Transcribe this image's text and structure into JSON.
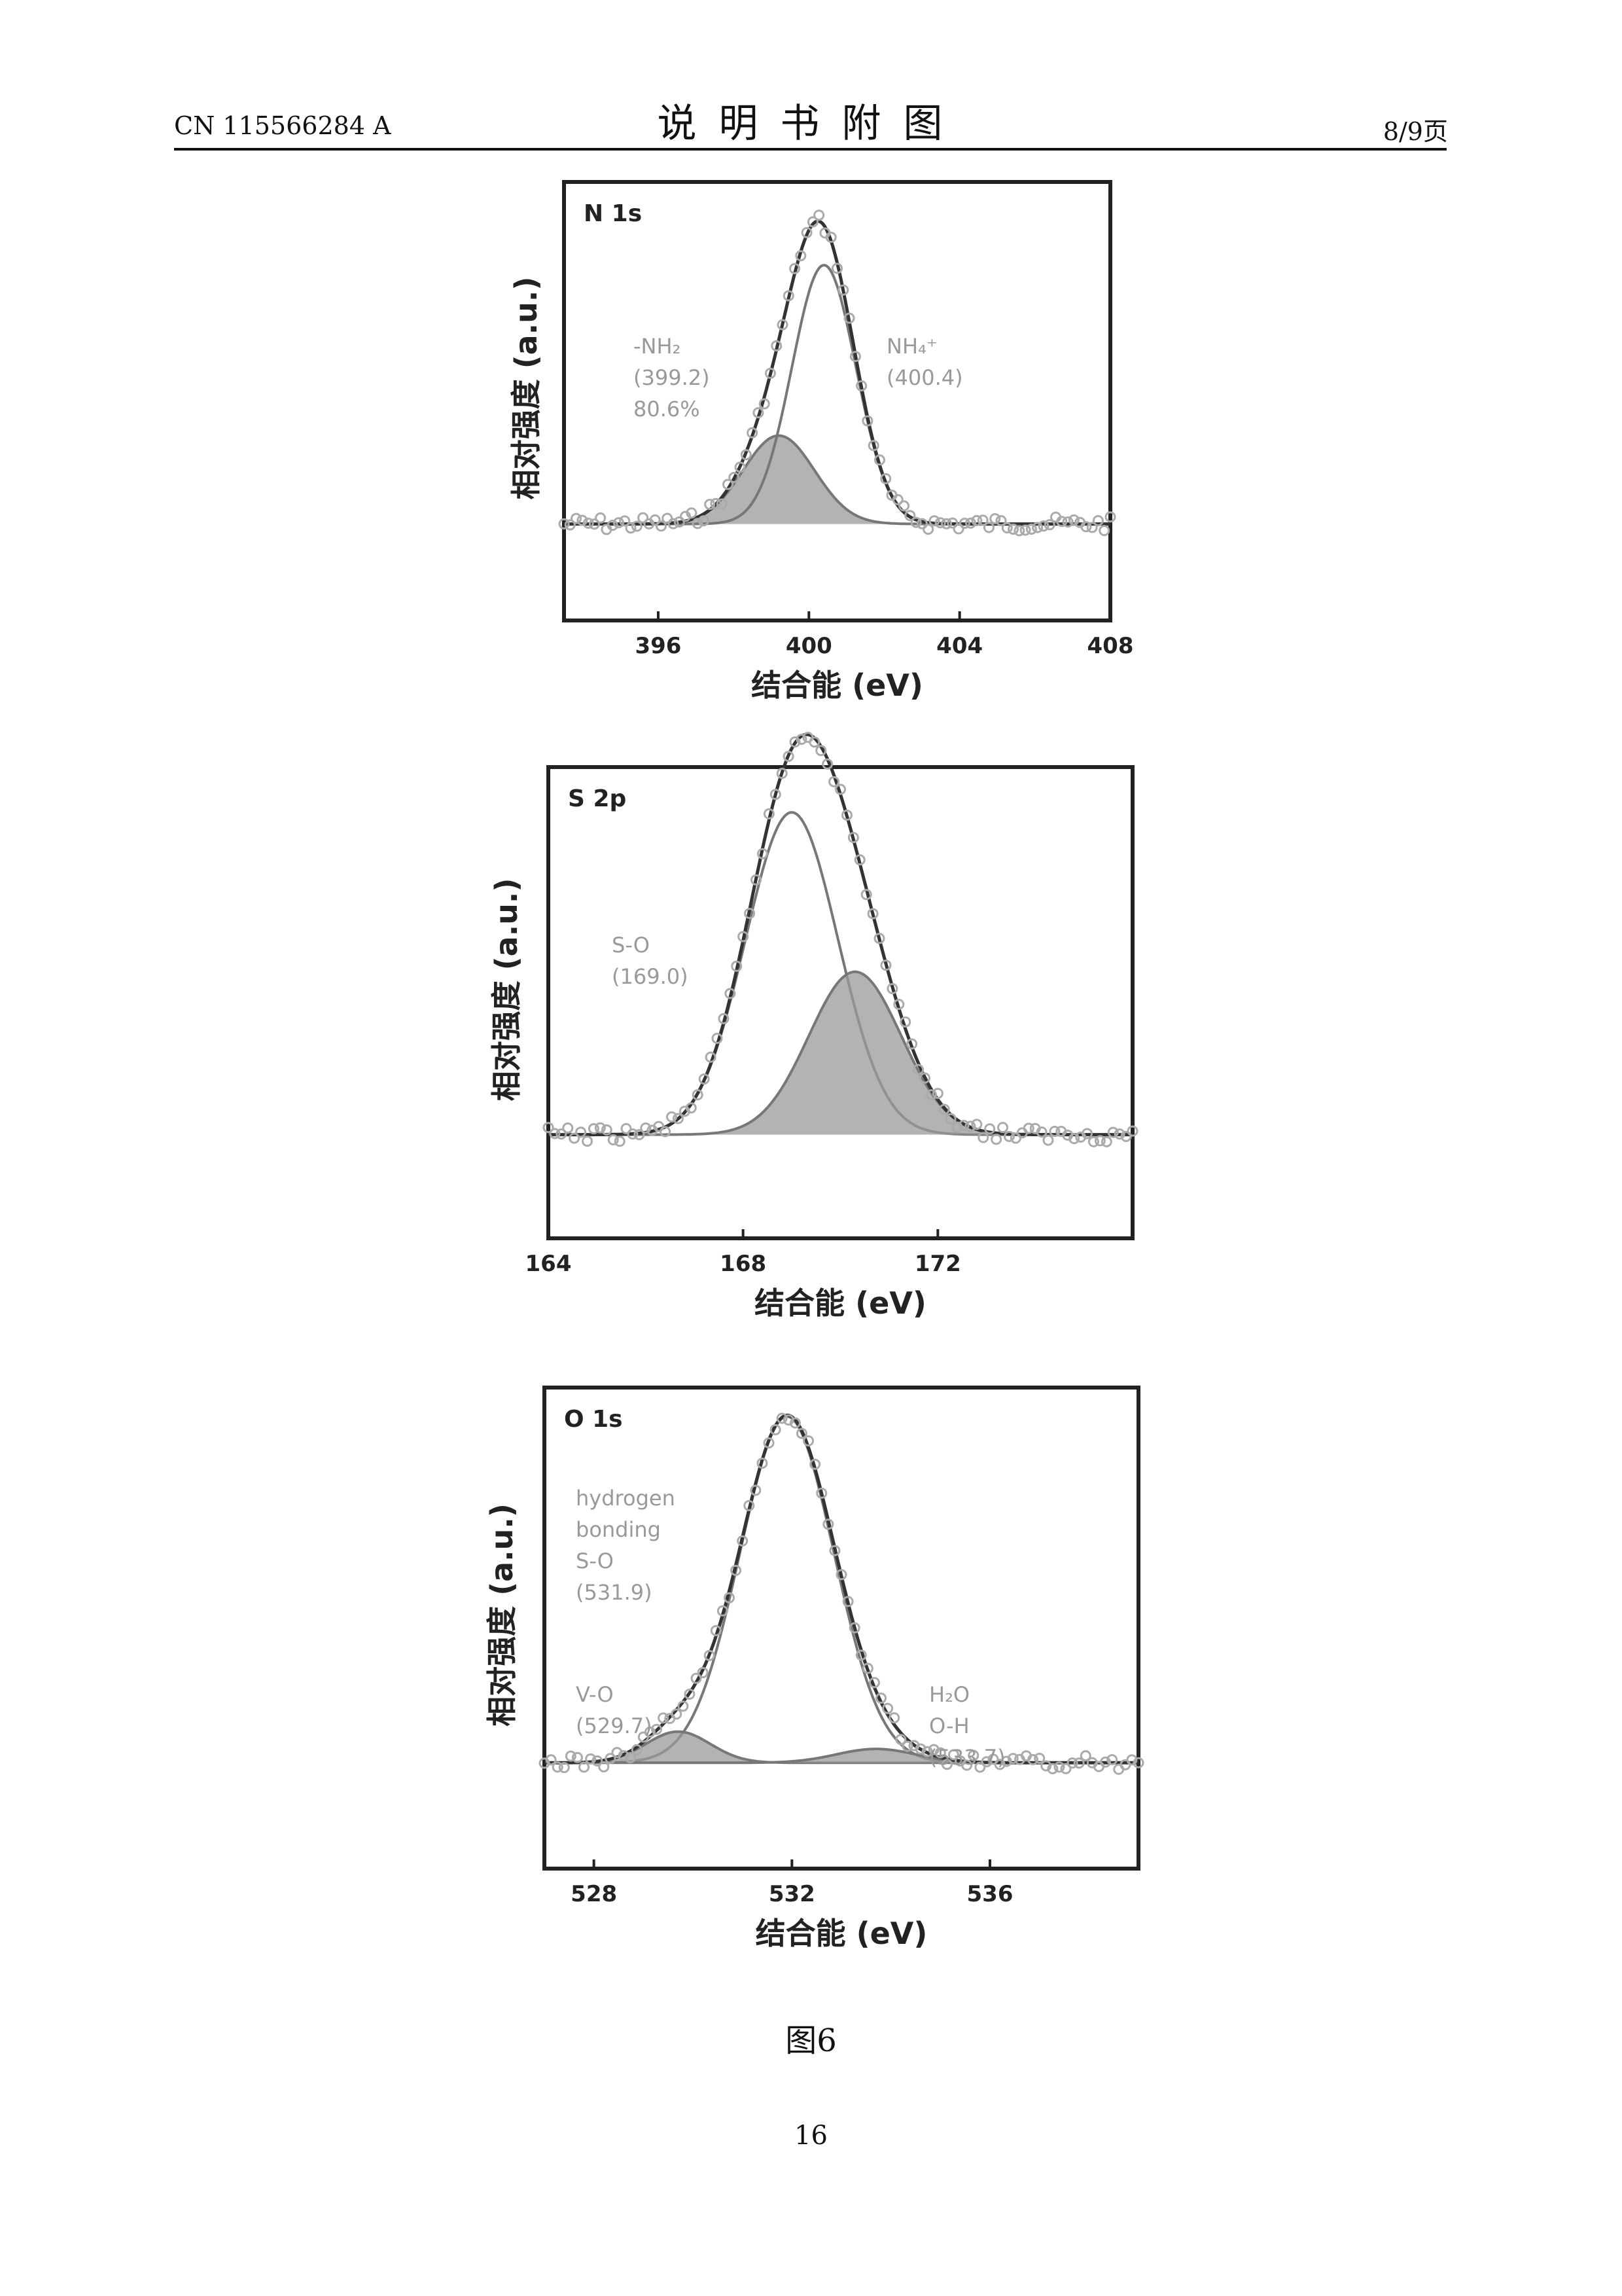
{
  "header": {
    "publication_number": "CN 115566284 A",
    "section_title": "说明书附图",
    "page_of": "8/9页"
  },
  "figure": {
    "caption": "图6",
    "page_number": "16"
  },
  "chart_data": [
    {
      "type": "line",
      "title": "N 1s",
      "xlabel": "结合能 (eV)",
      "ylabel": "相对强度 (a.u.)",
      "xlim": [
        393.5,
        408
      ],
      "x_ticks": [
        "396",
        "400",
        "404",
        "408"
      ],
      "x_tick_values": [
        396,
        400,
        404,
        408
      ],
      "peaks": [
        {
          "label_lines": [
            "-NH₂",
            "(399.2)",
            "80.6%"
          ],
          "center": 399.2,
          "height": 0.28,
          "width": 0.95,
          "filled": true
        },
        {
          "label_lines": [
            "NH₄⁺",
            "(400.4)"
          ],
          "center": 400.4,
          "height": 0.82,
          "width": 0.85,
          "filled": false
        }
      ]
    },
    {
      "type": "line",
      "title": "S 2p",
      "xlabel": "结合能 (eV)",
      "ylabel": "相对强度 (a.u.)",
      "xlim": [
        164,
        176
      ],
      "x_ticks": [
        "164",
        "168",
        "172"
      ],
      "x_tick_values": [
        164,
        168,
        172
      ],
      "peaks": [
        {
          "label_lines": [
            "S-O",
            "(169.0)"
          ],
          "center": 169.0,
          "height": 0.95,
          "width": 0.95,
          "filled": false
        },
        {
          "label_lines": [],
          "center": 170.3,
          "height": 0.48,
          "width": 0.95,
          "filled": true
        }
      ]
    },
    {
      "type": "line",
      "title": "O 1s",
      "xlabel": "结合能 (eV)",
      "ylabel": "相对强度 (a.u.)",
      "xlim": [
        527,
        539
      ],
      "x_ticks": [
        "528",
        "532",
        "536"
      ],
      "x_tick_values": [
        528,
        532,
        536
      ],
      "peaks": [
        {
          "label_lines": [
            "hydrogen",
            "bonding",
            "S-O",
            "(531.9)"
          ],
          "center": 531.9,
          "height": 1.0,
          "width": 0.95,
          "filled": false
        },
        {
          "label_lines": [
            "V-O",
            "(529.7)"
          ],
          "center": 529.7,
          "height": 0.09,
          "width": 0.65,
          "filled": true
        },
        {
          "label_lines": [
            "H₂O",
            "O-H",
            "(533.7)"
          ],
          "center": 533.7,
          "height": 0.04,
          "width": 0.8,
          "filled": true
        }
      ]
    }
  ]
}
